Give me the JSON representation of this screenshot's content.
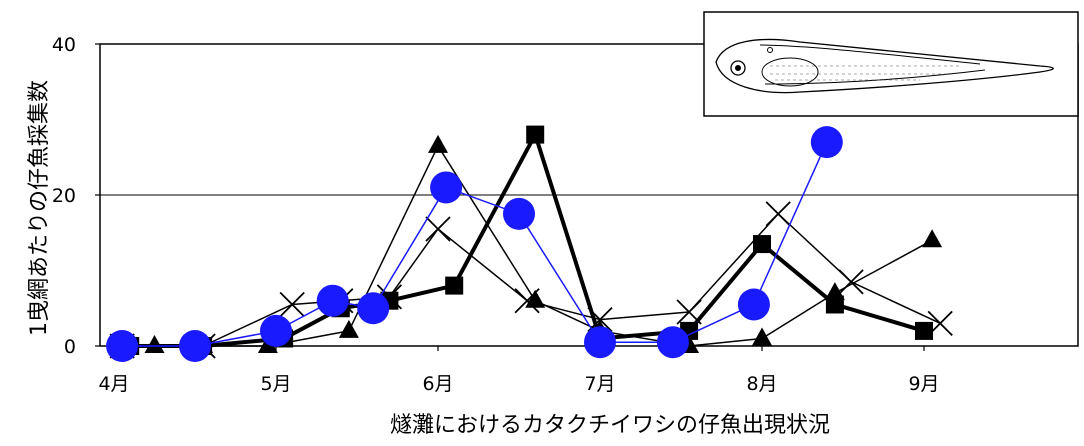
{
  "chart_data": {
    "type": "line",
    "title": "",
    "xlabel": "燧灘におけるカタクチイワシの仔魚出現状況",
    "ylabel": "1曳網あたりの仔魚採集数",
    "ylim": [
      0,
      40
    ],
    "xlim": [
      0,
      6.0
    ],
    "x_ticks": [
      {
        "value": 0,
        "label": "4月"
      },
      {
        "value": 1,
        "label": "5月"
      },
      {
        "value": 2,
        "label": "6月"
      },
      {
        "value": 3,
        "label": "7月"
      },
      {
        "value": 4,
        "label": "8月"
      },
      {
        "value": 5,
        "label": "9月"
      }
    ],
    "y_ticks": [
      {
        "value": 0,
        "label": "0"
      },
      {
        "value": 20,
        "label": "20"
      },
      {
        "value": 40,
        "label": "40"
      }
    ],
    "grid": "horizontal at 20 and 40",
    "inset_image": "larval anchovy illustration (top-right)",
    "series": [
      {
        "marker": "square",
        "color": "#000000",
        "linewidth": 4,
        "points": [
          [
            0.1,
            0
          ],
          [
            0.55,
            0
          ],
          [
            1.05,
            1
          ],
          [
            1.4,
            5
          ],
          [
            1.7,
            6
          ],
          [
            2.1,
            8
          ],
          [
            2.6,
            28
          ],
          [
            3.0,
            1
          ],
          [
            3.55,
            2
          ],
          [
            4.0,
            13.5
          ],
          [
            4.45,
            5.5
          ],
          [
            5.0,
            2
          ]
        ]
      },
      {
        "marker": "triangle",
        "color": "#000000",
        "linewidth": 1.5,
        "points": [
          [
            0.05,
            0
          ],
          [
            0.25,
            0
          ],
          [
            0.55,
            0
          ],
          [
            0.95,
            0
          ],
          [
            1.45,
            2
          ],
          [
            2.0,
            26.5
          ],
          [
            2.6,
            6
          ],
          [
            3.0,
            2
          ],
          [
            3.55,
            0
          ],
          [
            4.0,
            1
          ],
          [
            4.45,
            7
          ],
          [
            5.05,
            14
          ]
        ]
      },
      {
        "marker": "x",
        "color": "#000000",
        "linewidth": 1.5,
        "points": [
          [
            0.05,
            0
          ],
          [
            0.55,
            0
          ],
          [
            1.1,
            5.5
          ],
          [
            1.4,
            6
          ],
          [
            1.7,
            6.5
          ],
          [
            2.0,
            15.5
          ],
          [
            2.55,
            6
          ],
          [
            3.0,
            3.5
          ],
          [
            3.55,
            4.5
          ],
          [
            4.1,
            17.5
          ],
          [
            4.55,
            8.5
          ],
          [
            5.1,
            3
          ]
        ]
      },
      {
        "marker": "circle",
        "color": "#1a1aff",
        "linewidth": 1.5,
        "points": [
          [
            0.05,
            0
          ],
          [
            0.5,
            0
          ],
          [
            1.0,
            2
          ],
          [
            1.35,
            6
          ],
          [
            1.6,
            5
          ],
          [
            2.05,
            21
          ],
          [
            2.5,
            17.5
          ],
          [
            3.0,
            0.5
          ],
          [
            3.45,
            0.5
          ],
          [
            3.95,
            5.5
          ],
          [
            4.4,
            27
          ]
        ]
      }
    ]
  }
}
